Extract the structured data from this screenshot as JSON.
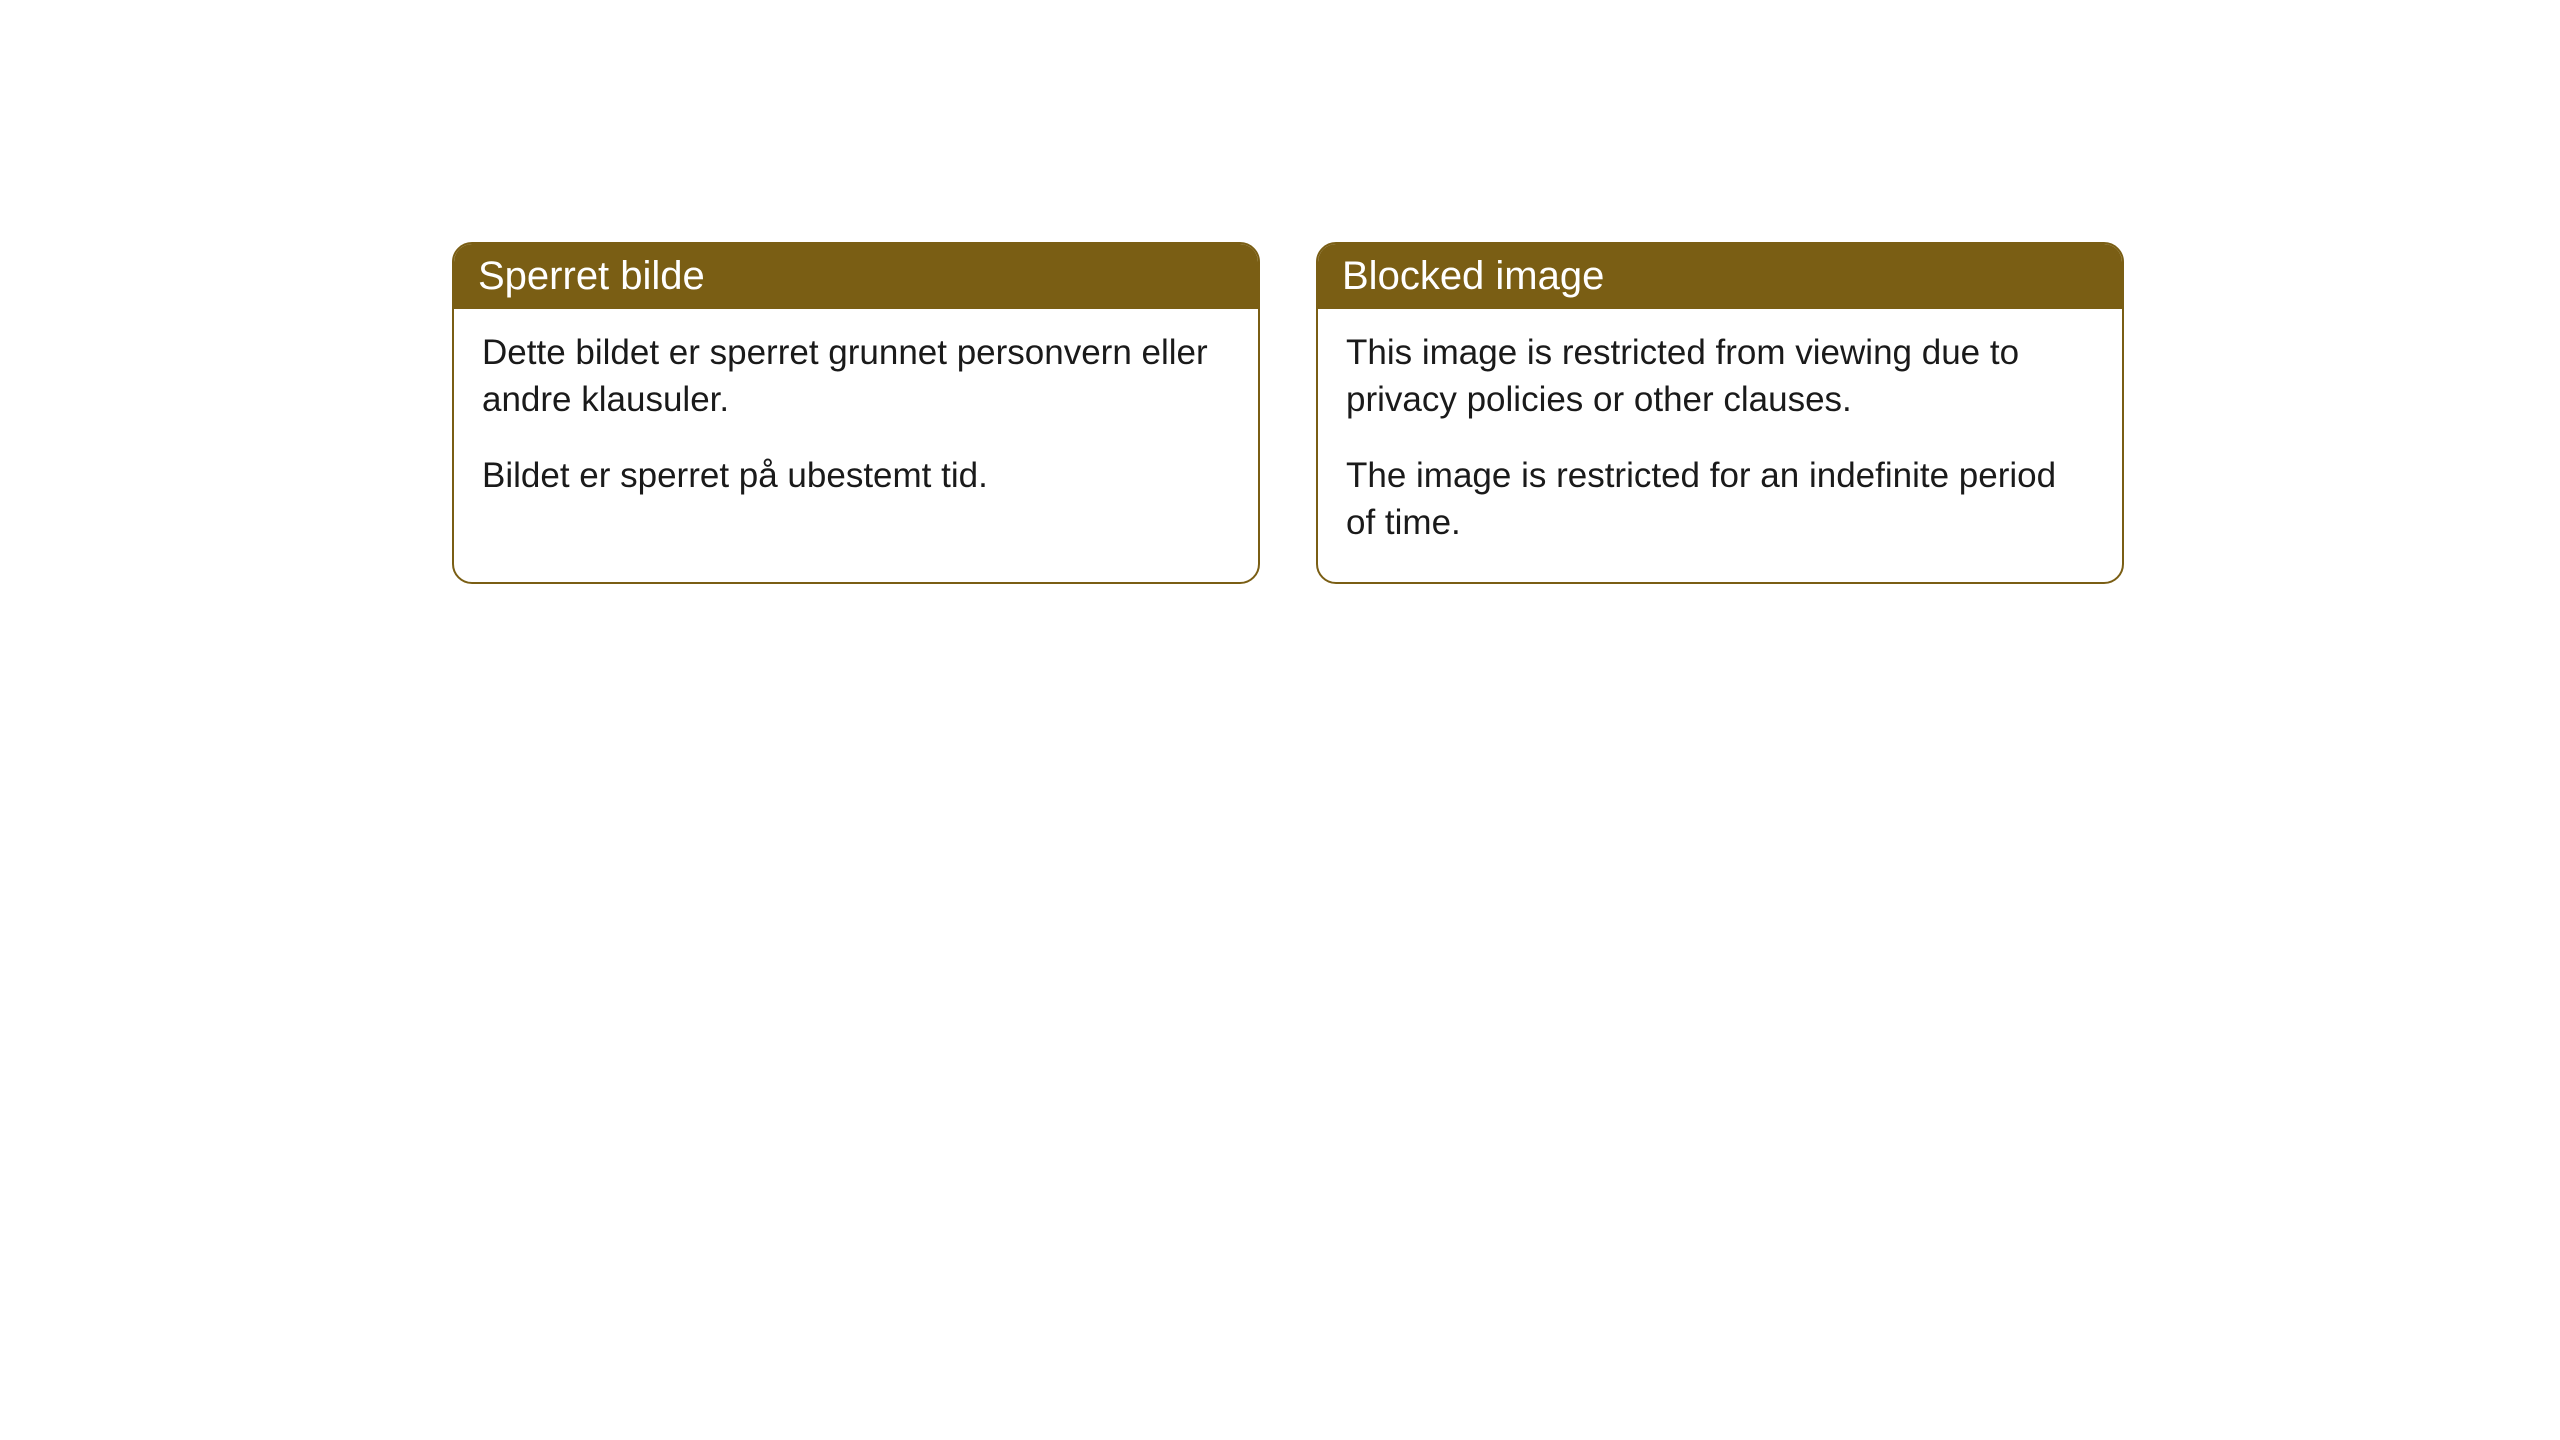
{
  "cards": [
    {
      "title": "Sperret bilde",
      "paragraph1": "Dette bildet er sperret grunnet personvern eller andre klausuler.",
      "paragraph2": "Bildet er sperret på ubestemt tid."
    },
    {
      "title": "Blocked image",
      "paragraph1": "This image is restricted from viewing due to privacy policies or other clauses.",
      "paragraph2": "The image is restricted for an indefinite period of time."
    }
  ],
  "styling": {
    "header_background": "#7a5e14",
    "header_text_color": "#ffffff",
    "border_color": "#7a5e14",
    "body_text_color": "#1a1a1a",
    "card_background": "#ffffff",
    "page_background": "#ffffff",
    "border_radius": 20,
    "header_fontsize": 40,
    "body_fontsize": 35
  }
}
